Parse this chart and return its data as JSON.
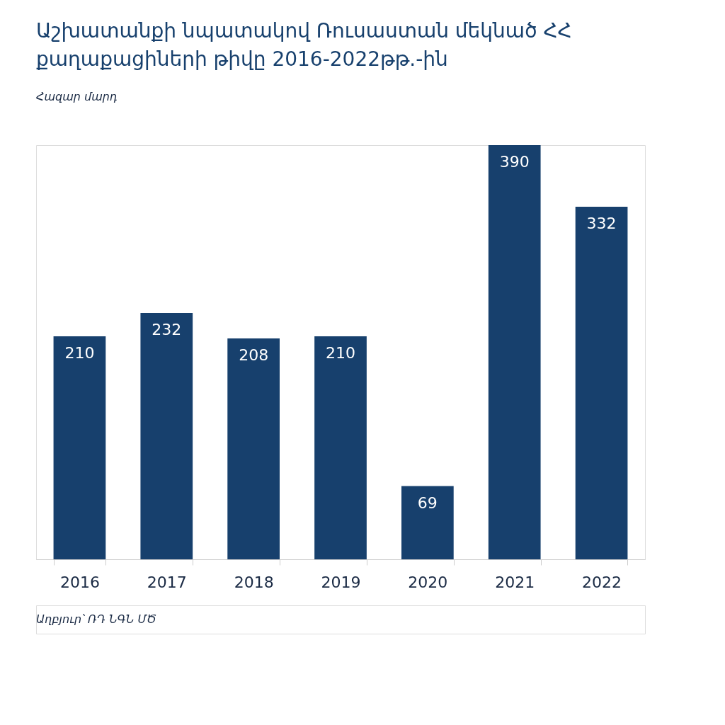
{
  "chart_data": {
    "type": "bar",
    "title": "Աշխատանքի նպատակով Ռուսաստան մեկնած ՀՀ քաղաքացիների թիվը 2016-2022թթ.-ին",
    "subtitle": "Հազար մարդ",
    "categories": [
      "2016",
      "2017",
      "2018",
      "2019",
      "2020",
      "2021",
      "2022"
    ],
    "values": [
      210,
      232,
      208,
      210,
      69,
      390,
      332
    ],
    "color": "#17406d",
    "data_labels": true,
    "grid": false,
    "annotations": [
      "Աղբյուր՝ ՌԴ ՆԳՆ ՄԾ"
    ]
  }
}
